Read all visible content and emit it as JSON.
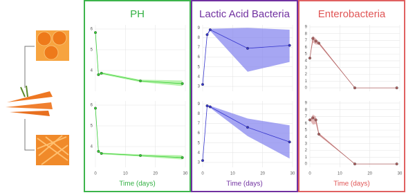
{
  "chart_data": [
    {
      "type": "line",
      "title": "PH",
      "x_label": "Time (days)",
      "title_color": "#33b043",
      "frame_color": "#3cb44b",
      "line_color": "#33cc33",
      "band_color": "#99ee88",
      "xlim": [
        0,
        30
      ],
      "xticks": [
        0,
        10,
        20,
        30
      ],
      "grid": true,
      "subplots": [
        {
          "ylim": [
            3,
            6.2
          ],
          "yticks": [
            4,
            5,
            6
          ],
          "x": [
            0,
            1,
            2,
            15,
            29
          ],
          "values": [
            5.83,
            3.8,
            3.87,
            3.5,
            3.37
          ],
          "lower": [
            5.83,
            3.76,
            3.82,
            3.44,
            3.25
          ],
          "upper": [
            5.83,
            3.84,
            3.92,
            3.56,
            3.52
          ]
        },
        {
          "ylim": [
            3,
            6.2
          ],
          "yticks": [
            4,
            5,
            6
          ],
          "x": [
            0,
            1,
            2,
            15,
            29
          ],
          "values": [
            5.85,
            3.77,
            3.67,
            3.57,
            3.47
          ],
          "lower": [
            5.85,
            3.73,
            3.63,
            3.52,
            3.38
          ],
          "upper": [
            5.85,
            3.81,
            3.71,
            3.62,
            3.58
          ]
        }
      ]
    },
    {
      "type": "line",
      "title": "Lactic Acid Bacteria",
      "x_label": "Time (days)",
      "title_color": "#7030a0",
      "frame_color": "#7030a0",
      "line_color": "#3333cc",
      "band_color": "#8080ee",
      "xlim": [
        0,
        30
      ],
      "xticks": [
        0,
        10,
        20,
        30
      ],
      "grid": true,
      "subplots": [
        {
          "ylim": [
            2.5,
            9.3
          ],
          "yticks": [
            3,
            4,
            5,
            6,
            7,
            8,
            9
          ],
          "x": [
            0,
            1.5,
            2.5,
            15,
            29
          ],
          "values": [
            3.2,
            8.3,
            8.8,
            6.9,
            7.2
          ],
          "lower": [
            3.2,
            8.2,
            8.7,
            4.5,
            5.5
          ],
          "upper": [
            3.2,
            8.4,
            8.9,
            9,
            8.8
          ]
        },
        {
          "ylim": [
            2.5,
            9.3
          ],
          "yticks": [
            3,
            4,
            5,
            6,
            7,
            8,
            9
          ],
          "x": [
            0,
            1.5,
            2.5,
            15,
            29
          ],
          "values": [
            3.2,
            8.8,
            8.7,
            6.6,
            5.1
          ],
          "lower": [
            3.2,
            8.7,
            8.6,
            5.7,
            3.4
          ],
          "upper": [
            3.2,
            8.9,
            8.8,
            7.5,
            6.8
          ]
        }
      ]
    },
    {
      "type": "line",
      "title": "Enterobacteria",
      "x_label": "Time (days)",
      "title_color": "#e05555",
      "frame_color": "#e06060",
      "line_color": "#b06060",
      "band_color": "#d99a9a",
      "xlim": [
        0,
        30
      ],
      "xticks": [
        0,
        10,
        20,
        30
      ],
      "grid": true,
      "subplots": [
        {
          "ylim": [
            -0.5,
            9.3
          ],
          "yticks": [
            0,
            1,
            2,
            3,
            4,
            5,
            6,
            7,
            8,
            9
          ],
          "x": [
            0,
            1,
            2,
            3,
            15,
            29
          ],
          "values": [
            4.4,
            7.3,
            6.9,
            6.6,
            0,
            0
          ],
          "lower": [
            4.4,
            6.7,
            6.4,
            6.4,
            0,
            0
          ],
          "upper": [
            4.4,
            7.7,
            7.3,
            6.8,
            0,
            0
          ]
        },
        {
          "ylim": [
            -0.5,
            9.3
          ],
          "yticks": [
            0,
            1,
            2,
            3,
            4,
            5,
            6,
            7,
            8,
            9
          ],
          "x": [
            0,
            1,
            2,
            3,
            15,
            29
          ],
          "values": [
            6.5,
            6.8,
            6.5,
            4.4,
            0,
            0
          ],
          "lower": [
            6.5,
            5.8,
            5.9,
            4.2,
            0,
            0
          ],
          "upper": [
            6.5,
            7.3,
            7.0,
            4.6,
            0,
            0
          ]
        }
      ]
    }
  ]
}
